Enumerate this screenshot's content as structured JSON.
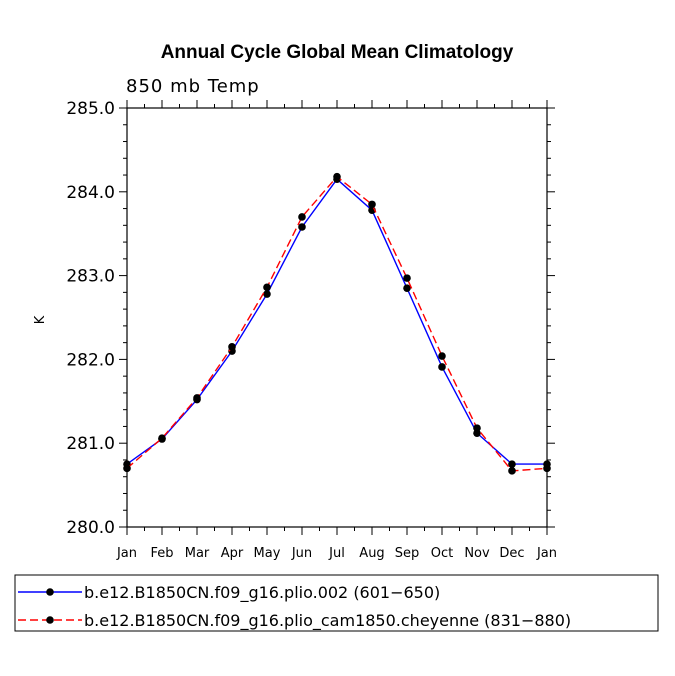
{
  "chart_data": {
    "type": "line",
    "title": "Annual Cycle Global Mean Climatology",
    "subtitle": "850 mb Temp",
    "xlabel": "",
    "ylabel": "K",
    "categories": [
      "Jan",
      "Feb",
      "Mar",
      "Apr",
      "May",
      "Jun",
      "Jul",
      "Aug",
      "Sep",
      "Oct",
      "Nov",
      "Dec",
      "Jan"
    ],
    "ylim": [
      280.0,
      285.0
    ],
    "yticks": [
      "280.0",
      "281.0",
      "282.0",
      "283.0",
      "284.0",
      "285.0"
    ],
    "series": [
      {
        "name": "b.e12.B1850CN.f09_g16.plio.002 (601−650)",
        "color": "#0000ff",
        "dash": "solid",
        "values": [
          280.75,
          281.05,
          281.52,
          282.1,
          282.78,
          283.58,
          284.15,
          283.78,
          282.85,
          281.91,
          281.12,
          280.75,
          280.75
        ]
      },
      {
        "name": "b.e12.B1850CN.f09_g16.plio_cam1850.cheyenne (831−880)",
        "color": "#ff0000",
        "dash": "dashed",
        "values": [
          280.7,
          281.06,
          281.54,
          282.15,
          282.86,
          283.7,
          284.18,
          283.85,
          282.97,
          282.04,
          281.18,
          280.67,
          280.7
        ]
      }
    ],
    "legend_position": "bottom"
  }
}
